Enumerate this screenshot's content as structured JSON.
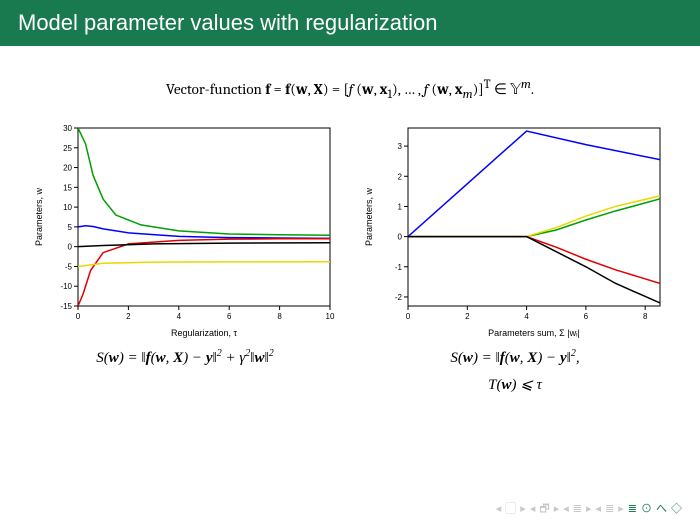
{
  "title_bar": {
    "text": "Model parameter values with regularization",
    "bg_color": "#1a7a4f"
  },
  "subtitle": {
    "html": "Vector-function <b>f</b> = <b>f</b>(<b>w</b>, <b>X</b>) = [<i>f</i> (<b>w</b>, <b>x</b><sub>1</sub>), … , <i>f</i> (<b>w</b>, <b>x</b><sub><i>m</i></sub>)]<sup>T</sup> ∈ 𝕐<sup><i>m</i></sup>."
  },
  "chart_left": {
    "type": "line",
    "xlabel": "Regularization, τ",
    "ylabel": "Parameters, w",
    "xlim": [
      0,
      10
    ],
    "ylim": [
      -15,
      30
    ],
    "xticks": [
      0,
      2,
      4,
      6,
      8,
      10
    ],
    "yticks": [
      -15,
      -10,
      -5,
      0,
      5,
      10,
      15,
      20,
      25,
      30
    ],
    "axis_color": "#000000",
    "box_color": "#000000",
    "tick_fontsize": 8,
    "label_fontsize": 9,
    "series": [
      {
        "color": "#00a000",
        "width": 1.5,
        "data": [
          [
            0,
            30
          ],
          [
            0.3,
            26
          ],
          [
            0.6,
            18
          ],
          [
            1,
            12
          ],
          [
            1.5,
            8
          ],
          [
            2.5,
            5.5
          ],
          [
            4,
            4
          ],
          [
            6,
            3.2
          ],
          [
            8,
            3
          ],
          [
            10,
            2.9
          ]
        ]
      },
      {
        "color": "#0000ff",
        "width": 1.5,
        "data": [
          [
            0,
            5
          ],
          [
            0.3,
            5.3
          ],
          [
            0.6,
            5.1
          ],
          [
            1,
            4.5
          ],
          [
            2,
            3.5
          ],
          [
            4,
            2.6
          ],
          [
            6,
            2.3
          ],
          [
            8,
            2.2
          ],
          [
            10,
            2.1
          ]
        ]
      },
      {
        "color": "#e00000",
        "width": 1.5,
        "data": [
          [
            0,
            -15
          ],
          [
            0.2,
            -12
          ],
          [
            0.5,
            -6
          ],
          [
            1,
            -1.5
          ],
          [
            2,
            0.7
          ],
          [
            4,
            1.6
          ],
          [
            6,
            1.9
          ],
          [
            8,
            2
          ],
          [
            10,
            2
          ]
        ]
      },
      {
        "color": "#e8d800",
        "width": 1.5,
        "data": [
          [
            0,
            -5
          ],
          [
            1,
            -4.2
          ],
          [
            3,
            -3.9
          ],
          [
            6,
            -3.85
          ],
          [
            10,
            -3.8
          ]
        ]
      },
      {
        "color": "#000000",
        "width": 1.5,
        "data": [
          [
            0,
            0
          ],
          [
            1,
            0.3
          ],
          [
            3,
            0.7
          ],
          [
            6,
            0.9
          ],
          [
            10,
            1
          ]
        ]
      }
    ],
    "equation_html": "<i>S</i>(<b>w</b>) = ‖<b>f</b>(<b>w</b>, <b>X</b>) − <b>y</b>‖<sup>2</sup> + <i>γ</i><sup>2</sup>‖<b>w</b>‖<sup>2</sup>"
  },
  "chart_right": {
    "type": "line",
    "xlabel": "Parameters sum, Σ |wᵢ|",
    "ylabel": "Parameters, w",
    "xlim": [
      0,
      8.5
    ],
    "ylim": [
      -2.3,
      3.6
    ],
    "xticks": [
      0,
      2,
      4,
      6,
      8
    ],
    "yticks": [
      -2,
      -1,
      0,
      1,
      2,
      3
    ],
    "axis_color": "#000000",
    "box_color": "#000000",
    "tick_fontsize": 8,
    "label_fontsize": 9,
    "series": [
      {
        "color": "#0000ff",
        "width": 1.5,
        "data": [
          [
            0,
            0
          ],
          [
            2,
            1.75
          ],
          [
            4,
            3.5
          ],
          [
            6,
            3.05
          ],
          [
            8.5,
            2.55
          ]
        ]
      },
      {
        "color": "#00a000",
        "width": 1.5,
        "data": [
          [
            0,
            0
          ],
          [
            4,
            0
          ],
          [
            5,
            0.22
          ],
          [
            6,
            0.55
          ],
          [
            7,
            0.85
          ],
          [
            8.5,
            1.25
          ]
        ]
      },
      {
        "color": "#e8d800",
        "width": 1.5,
        "data": [
          [
            0,
            0
          ],
          [
            4,
            0
          ],
          [
            5,
            0.3
          ],
          [
            6,
            0.68
          ],
          [
            7,
            1.0
          ],
          [
            8.5,
            1.35
          ]
        ]
      },
      {
        "color": "#e00000",
        "width": 1.5,
        "data": [
          [
            0,
            0
          ],
          [
            4,
            0
          ],
          [
            5,
            -0.35
          ],
          [
            6,
            -0.75
          ],
          [
            7,
            -1.1
          ],
          [
            8.5,
            -1.55
          ]
        ]
      },
      {
        "color": "#000000",
        "width": 1.5,
        "data": [
          [
            0,
            0
          ],
          [
            4,
            0
          ],
          [
            5,
            -0.5
          ],
          [
            6,
            -1.0
          ],
          [
            7,
            -1.55
          ],
          [
            8.5,
            -2.2
          ]
        ]
      }
    ],
    "equation_html": "<i>S</i>(<b>w</b>) = ‖<b>f</b>(<b>w</b>, <b>X</b>) − <b>y</b>‖<sup>2</sup>,",
    "equation2_html": "<i>T</i>(<b>w</b>) ⩽ <i>τ</i>"
  },
  "footer": {
    "glyphs": [
      "◂",
      "▢",
      "▸",
      "◂",
      "🗗",
      "▸",
      "◂",
      "≣",
      "▸",
      "◂",
      "≣",
      "▸",
      "≣",
      "⊙",
      "へ",
      "◇"
    ]
  }
}
